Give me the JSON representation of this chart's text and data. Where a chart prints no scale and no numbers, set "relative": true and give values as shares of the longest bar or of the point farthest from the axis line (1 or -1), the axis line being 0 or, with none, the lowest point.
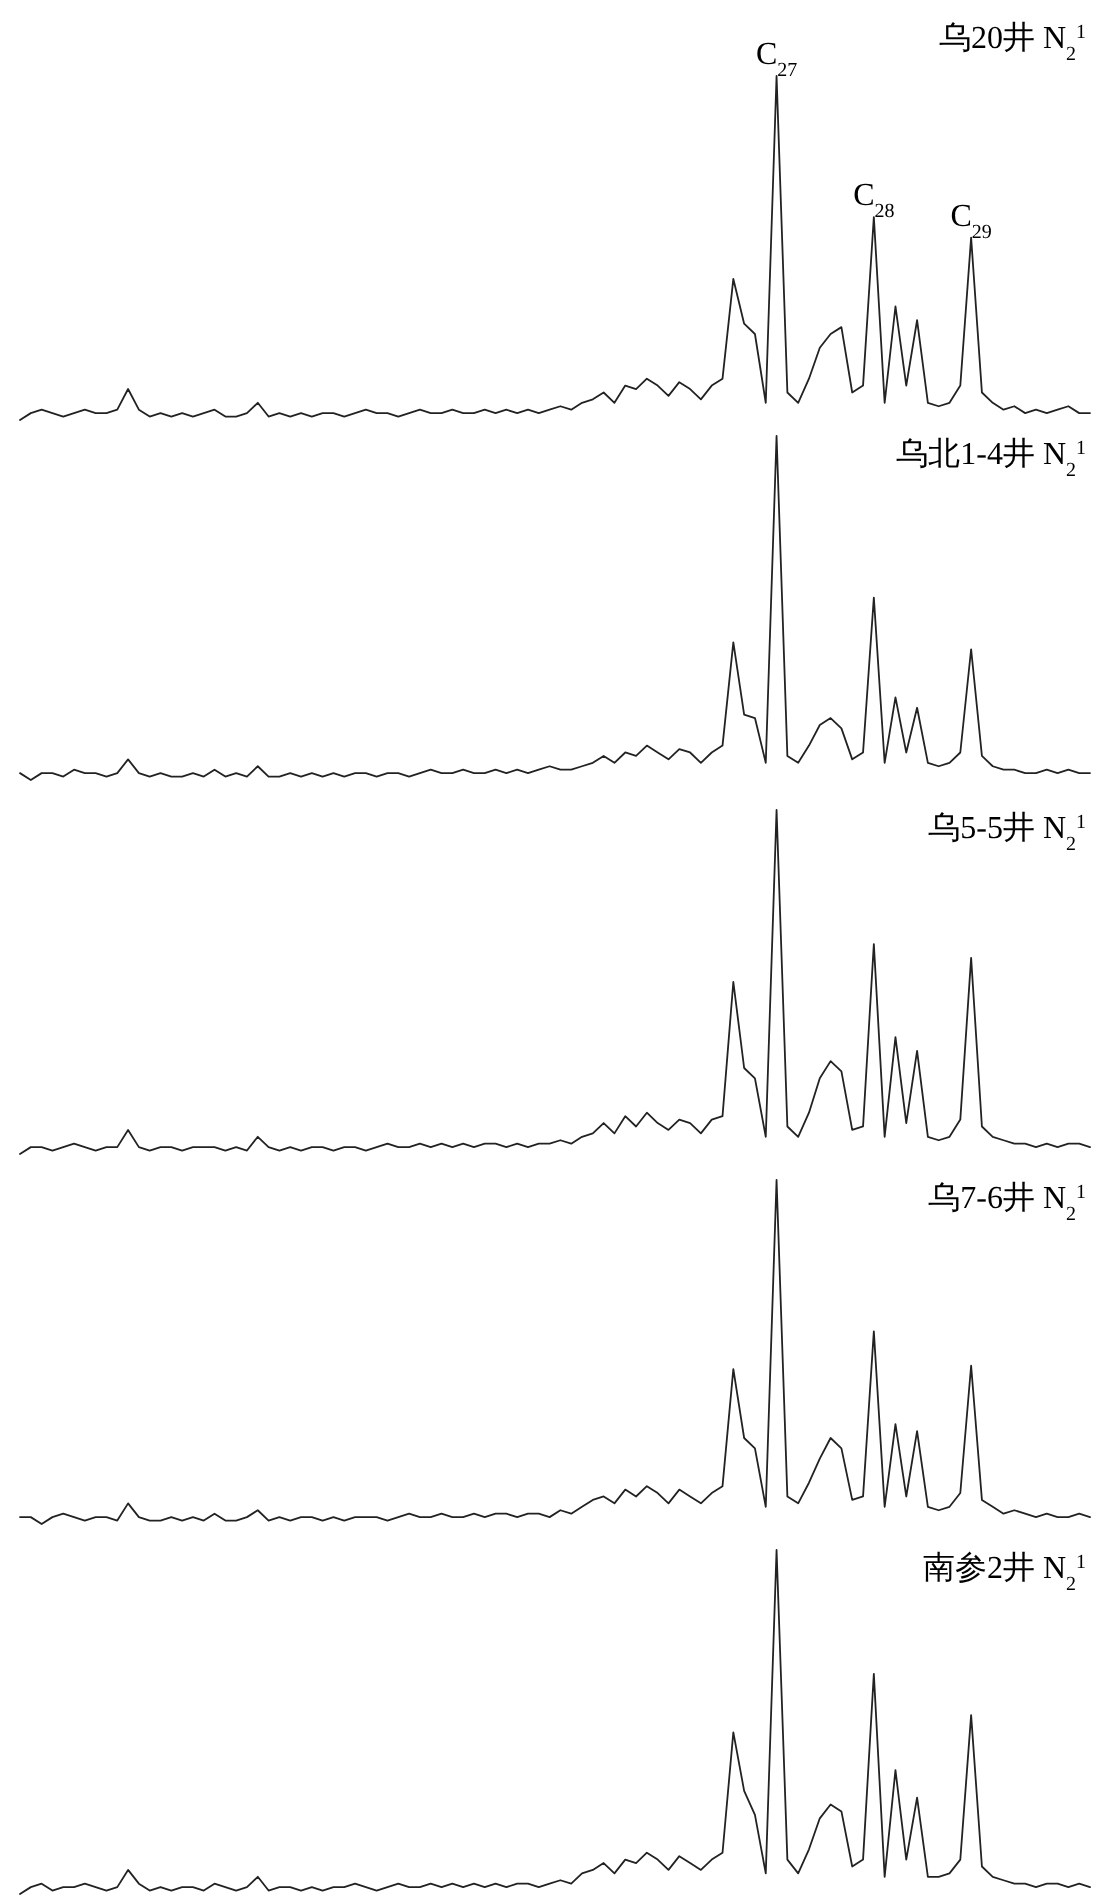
{
  "chart_data": [
    {
      "type": "line",
      "title": "乌20井  N$_{2}$$^{1}$",
      "relative": true,
      "categories": [
        null,
        null,
        null,
        null,
        null,
        null,
        null,
        null,
        null,
        null,
        null,
        null,
        null,
        null,
        null,
        null,
        null,
        null,
        null,
        null,
        null,
        null,
        null,
        null,
        null,
        null,
        null,
        null,
        null,
        null,
        null,
        null,
        null,
        null,
        null,
        null,
        null,
        null,
        null,
        null,
        null,
        null,
        null,
        null,
        null,
        null,
        null,
        null,
        null,
        null,
        null,
        null,
        null,
        null,
        null,
        null,
        null,
        null,
        null,
        null,
        null,
        null,
        null,
        null,
        null,
        null,
        null,
        null,
        null,
        null,
        null,
        null,
        null,
        null,
        null,
        null,
        null,
        null,
        null,
        null,
        null,
        null,
        null,
        null,
        null,
        null,
        null,
        null,
        null,
        null,
        null,
        null,
        null,
        null,
        null,
        null,
        null,
        null,
        null,
        null
      ],
      "series": [
        {
          "color": "#222222",
          "values": [
            0.0,
            0.02,
            0.03,
            0.02,
            0.01,
            0.02,
            0.03,
            0.02,
            0.02,
            0.03,
            0.09,
            0.03,
            0.01,
            0.02,
            0.01,
            0.02,
            0.01,
            0.02,
            0.03,
            0.01,
            0.01,
            0.02,
            0.05,
            0.01,
            0.02,
            0.01,
            0.02,
            0.01,
            0.02,
            0.02,
            0.01,
            0.02,
            0.03,
            0.02,
            0.02,
            0.01,
            0.02,
            0.03,
            0.02,
            0.02,
            0.03,
            0.02,
            0.02,
            0.03,
            0.02,
            0.03,
            0.02,
            0.03,
            0.02,
            0.03,
            0.04,
            0.03,
            0.05,
            0.06,
            0.08,
            0.05,
            0.1,
            0.09,
            0.12,
            0.1,
            0.07,
            0.11,
            0.09,
            0.06,
            0.1,
            0.12,
            0.41,
            0.28,
            0.25,
            0.05,
            1.0,
            0.08,
            0.05,
            0.12,
            0.21,
            0.25,
            0.27,
            0.08,
            0.1,
            0.59,
            0.05,
            0.33,
            0.1,
            0.29,
            0.05,
            0.04,
            0.05,
            0.1,
            0.53,
            0.08,
            0.05,
            0.03,
            0.04,
            0.02,
            0.03,
            0.02,
            0.03,
            0.04,
            0.02,
            0.02
          ]
        }
      ],
      "annotations": [
        {
          "text": "C$_{27}$",
          "y": 1.0
        },
        {
          "text": "C$_{28}$",
          "y": 0.59
        },
        {
          "text": "C$_{29}$",
          "y": 0.53
        }
      ]
    },
    {
      "type": "line",
      "title": "乌北1-4井  N$_{2}$$^{1}$",
      "relative": true,
      "categories": [
        null,
        null,
        null,
        null,
        null,
        null,
        null,
        null,
        null,
        null,
        null,
        null,
        null,
        null,
        null,
        null,
        null,
        null,
        null,
        null,
        null,
        null,
        null,
        null,
        null,
        null,
        null,
        null,
        null,
        null,
        null,
        null,
        null,
        null,
        null,
        null,
        null,
        null,
        null,
        null,
        null,
        null,
        null,
        null,
        null,
        null,
        null,
        null,
        null,
        null,
        null,
        null,
        null,
        null,
        null,
        null,
        null,
        null,
        null,
        null,
        null,
        null,
        null,
        null,
        null,
        null,
        null,
        null,
        null,
        null,
        null,
        null,
        null,
        null,
        null,
        null,
        null,
        null,
        null,
        null,
        null,
        null,
        null,
        null,
        null,
        null,
        null,
        null,
        null,
        null,
        null,
        null,
        null,
        null,
        null,
        null,
        null,
        null,
        null,
        null
      ],
      "series": [
        {
          "color": "#222222",
          "values": [
            0.02,
            0.0,
            0.02,
            0.02,
            0.01,
            0.03,
            0.02,
            0.02,
            0.01,
            0.02,
            0.06,
            0.02,
            0.01,
            0.02,
            0.01,
            0.01,
            0.02,
            0.01,
            0.03,
            0.01,
            0.02,
            0.01,
            0.04,
            0.01,
            0.01,
            0.02,
            0.01,
            0.02,
            0.01,
            0.02,
            0.01,
            0.02,
            0.02,
            0.01,
            0.02,
            0.02,
            0.01,
            0.02,
            0.03,
            0.02,
            0.02,
            0.03,
            0.02,
            0.02,
            0.03,
            0.02,
            0.03,
            0.02,
            0.03,
            0.04,
            0.03,
            0.03,
            0.04,
            0.05,
            0.07,
            0.05,
            0.08,
            0.07,
            0.1,
            0.08,
            0.06,
            0.09,
            0.08,
            0.05,
            0.08,
            0.1,
            0.4,
            0.19,
            0.18,
            0.05,
            1.0,
            0.07,
            0.05,
            0.1,
            0.16,
            0.18,
            0.15,
            0.06,
            0.08,
            0.53,
            0.05,
            0.24,
            0.08,
            0.21,
            0.05,
            0.04,
            0.05,
            0.08,
            0.38,
            0.07,
            0.04,
            0.03,
            0.03,
            0.02,
            0.02,
            0.03,
            0.02,
            0.03,
            0.02,
            0.02
          ]
        }
      ]
    },
    {
      "type": "line",
      "title": "乌5-5井  N$_{2}$$^{1}$",
      "relative": true,
      "categories": [
        null,
        null,
        null,
        null,
        null,
        null,
        null,
        null,
        null,
        null,
        null,
        null,
        null,
        null,
        null,
        null,
        null,
        null,
        null,
        null,
        null,
        null,
        null,
        null,
        null,
        null,
        null,
        null,
        null,
        null,
        null,
        null,
        null,
        null,
        null,
        null,
        null,
        null,
        null,
        null,
        null,
        null,
        null,
        null,
        null,
        null,
        null,
        null,
        null,
        null,
        null,
        null,
        null,
        null,
        null,
        null,
        null,
        null,
        null,
        null,
        null,
        null,
        null,
        null,
        null,
        null,
        null,
        null,
        null,
        null,
        null,
        null,
        null,
        null,
        null,
        null,
        null,
        null,
        null,
        null,
        null,
        null,
        null,
        null,
        null,
        null,
        null,
        null,
        null,
        null,
        null,
        null,
        null,
        null,
        null,
        null,
        null,
        null,
        null,
        null
      ],
      "series": [
        {
          "color": "#222222",
          "values": [
            0.0,
            0.02,
            0.02,
            0.01,
            0.02,
            0.03,
            0.02,
            0.01,
            0.02,
            0.02,
            0.07,
            0.02,
            0.01,
            0.02,
            0.02,
            0.01,
            0.02,
            0.02,
            0.02,
            0.01,
            0.02,
            0.01,
            0.05,
            0.02,
            0.01,
            0.02,
            0.01,
            0.02,
            0.02,
            0.01,
            0.02,
            0.02,
            0.01,
            0.02,
            0.03,
            0.02,
            0.02,
            0.03,
            0.02,
            0.03,
            0.02,
            0.03,
            0.02,
            0.03,
            0.03,
            0.02,
            0.03,
            0.02,
            0.03,
            0.03,
            0.04,
            0.03,
            0.05,
            0.06,
            0.09,
            0.06,
            0.11,
            0.08,
            0.12,
            0.09,
            0.07,
            0.1,
            0.09,
            0.06,
            0.1,
            0.11,
            0.5,
            0.25,
            0.22,
            0.05,
            1.0,
            0.08,
            0.05,
            0.12,
            0.22,
            0.27,
            0.24,
            0.07,
            0.08,
            0.61,
            0.05,
            0.34,
            0.09,
            0.3,
            0.05,
            0.04,
            0.05,
            0.1,
            0.57,
            0.08,
            0.05,
            0.04,
            0.03,
            0.03,
            0.02,
            0.03,
            0.02,
            0.03,
            0.03,
            0.02
          ]
        }
      ]
    },
    {
      "type": "line",
      "title": "乌7-6井  N$_{2}$$^{1}$",
      "relative": true,
      "categories": [
        null,
        null,
        null,
        null,
        null,
        null,
        null,
        null,
        null,
        null,
        null,
        null,
        null,
        null,
        null,
        null,
        null,
        null,
        null,
        null,
        null,
        null,
        null,
        null,
        null,
        null,
        null,
        null,
        null,
        null,
        null,
        null,
        null,
        null,
        null,
        null,
        null,
        null,
        null,
        null,
        null,
        null,
        null,
        null,
        null,
        null,
        null,
        null,
        null,
        null,
        null,
        null,
        null,
        null,
        null,
        null,
        null,
        null,
        null,
        null,
        null,
        null,
        null,
        null,
        null,
        null,
        null,
        null,
        null,
        null,
        null,
        null,
        null,
        null,
        null,
        null,
        null,
        null,
        null,
        null,
        null,
        null,
        null,
        null,
        null,
        null,
        null,
        null,
        null,
        null,
        null,
        null,
        null,
        null,
        null,
        null,
        null,
        null,
        null,
        null
      ],
      "series": [
        {
          "color": "#222222",
          "values": [
            0.02,
            0.02,
            0.0,
            0.02,
            0.03,
            0.02,
            0.01,
            0.02,
            0.02,
            0.01,
            0.06,
            0.02,
            0.01,
            0.01,
            0.02,
            0.01,
            0.02,
            0.01,
            0.03,
            0.01,
            0.01,
            0.02,
            0.04,
            0.01,
            0.02,
            0.01,
            0.02,
            0.02,
            0.01,
            0.02,
            0.01,
            0.02,
            0.02,
            0.02,
            0.01,
            0.02,
            0.03,
            0.02,
            0.02,
            0.03,
            0.02,
            0.02,
            0.03,
            0.02,
            0.03,
            0.03,
            0.02,
            0.03,
            0.03,
            0.02,
            0.04,
            0.03,
            0.05,
            0.07,
            0.08,
            0.06,
            0.1,
            0.08,
            0.11,
            0.09,
            0.06,
            0.1,
            0.08,
            0.06,
            0.09,
            0.11,
            0.45,
            0.25,
            0.22,
            0.05,
            1.0,
            0.08,
            0.06,
            0.12,
            0.19,
            0.25,
            0.22,
            0.07,
            0.08,
            0.56,
            0.05,
            0.29,
            0.08,
            0.27,
            0.05,
            0.04,
            0.05,
            0.09,
            0.46,
            0.07,
            0.05,
            0.03,
            0.04,
            0.03,
            0.02,
            0.03,
            0.02,
            0.02,
            0.03,
            0.02
          ]
        }
      ]
    },
    {
      "type": "line",
      "title": "南参2井  N$_{2}$$^{1}$",
      "relative": true,
      "categories": [
        null,
        null,
        null,
        null,
        null,
        null,
        null,
        null,
        null,
        null,
        null,
        null,
        null,
        null,
        null,
        null,
        null,
        null,
        null,
        null,
        null,
        null,
        null,
        null,
        null,
        null,
        null,
        null,
        null,
        null,
        null,
        null,
        null,
        null,
        null,
        null,
        null,
        null,
        null,
        null,
        null,
        null,
        null,
        null,
        null,
        null,
        null,
        null,
        null,
        null,
        null,
        null,
        null,
        null,
        null,
        null,
        null,
        null,
        null,
        null,
        null,
        null,
        null,
        null,
        null,
        null,
        null,
        null,
        null,
        null,
        null,
        null,
        null,
        null,
        null,
        null,
        null,
        null,
        null,
        null,
        null,
        null,
        null,
        null,
        null,
        null,
        null,
        null,
        null,
        null,
        null,
        null,
        null,
        null,
        null,
        null,
        null,
        null,
        null,
        null
      ],
      "series": [
        {
          "color": "#222222",
          "values": [
            0.0,
            0.02,
            0.03,
            0.01,
            0.02,
            0.02,
            0.03,
            0.02,
            0.01,
            0.02,
            0.07,
            0.03,
            0.01,
            0.02,
            0.01,
            0.02,
            0.02,
            0.01,
            0.03,
            0.02,
            0.01,
            0.02,
            0.05,
            0.01,
            0.02,
            0.02,
            0.01,
            0.02,
            0.01,
            0.02,
            0.02,
            0.03,
            0.02,
            0.01,
            0.02,
            0.03,
            0.02,
            0.02,
            0.03,
            0.02,
            0.03,
            0.02,
            0.03,
            0.02,
            0.03,
            0.02,
            0.03,
            0.03,
            0.02,
            0.03,
            0.04,
            0.03,
            0.06,
            0.07,
            0.09,
            0.06,
            0.1,
            0.09,
            0.12,
            0.1,
            0.07,
            0.11,
            0.09,
            0.07,
            0.1,
            0.12,
            0.47,
            0.3,
            0.23,
            0.06,
            1.0,
            0.1,
            0.06,
            0.13,
            0.22,
            0.26,
            0.24,
            0.08,
            0.1,
            0.64,
            0.05,
            0.36,
            0.1,
            0.28,
            0.05,
            0.05,
            0.06,
            0.1,
            0.52,
            0.08,
            0.05,
            0.04,
            0.03,
            0.03,
            0.02,
            0.03,
            0.03,
            0.02,
            0.03,
            0.02
          ]
        }
      ]
    }
  ]
}
